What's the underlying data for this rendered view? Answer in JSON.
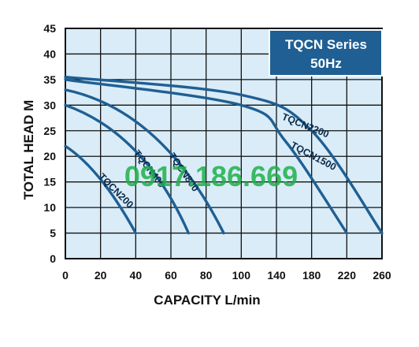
{
  "chart_data": {
    "type": "line",
    "xlabel": "CAPACITY L/min",
    "ylabel": "TOTAL HEAD M",
    "x_ticks": [
      0,
      20,
      40,
      60,
      80,
      100,
      140,
      180,
      220,
      260
    ],
    "y_ticks": [
      0,
      5,
      10,
      15,
      20,
      25,
      30,
      35,
      40,
      45
    ],
    "ylim": [
      0,
      45
    ],
    "grid": true,
    "series_badge": {
      "line1": "TQCN Series",
      "line2": "50Hz"
    },
    "series": [
      {
        "name": "TQCN200",
        "label_shown": "TQCN200",
        "points": [
          [
            0,
            22
          ],
          [
            20,
            15.5
          ],
          [
            40,
            5
          ]
        ]
      },
      {
        "name": "TQCN400",
        "label_shown": "TQCN400",
        "points": [
          [
            0,
            30
          ],
          [
            40,
            21
          ],
          [
            70,
            5
          ]
        ]
      },
      {
        "name": "TQCN800",
        "label_shown": "TQCN800",
        "points": [
          [
            0,
            33
          ],
          [
            50,
            24
          ],
          [
            90,
            5
          ]
        ]
      },
      {
        "name": "TQCN1500",
        "label_shown": "TQCN1500",
        "points": [
          [
            0,
            35
          ],
          [
            100,
            30
          ],
          [
            150,
            23
          ],
          [
            220,
            5
          ]
        ]
      },
      {
        "name": "TQCN2200",
        "label_shown": "TQCN2200",
        "points": [
          [
            0,
            35.5
          ],
          [
            100,
            32
          ],
          [
            180,
            25
          ],
          [
            260,
            5
          ]
        ]
      }
    ]
  },
  "watermark": {
    "text": "0917.186.669"
  },
  "colors": {
    "curve": "#1f5f93",
    "grid_bg": "#d9ecf8",
    "border": "#111111",
    "badge_bg": "#1f5f93",
    "watermark": "#1fb14a"
  }
}
